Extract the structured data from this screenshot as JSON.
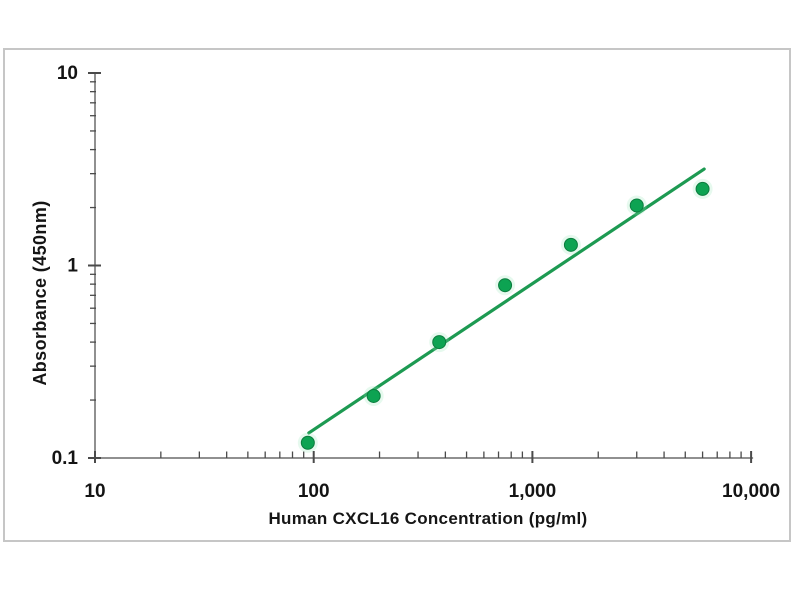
{
  "figure": {
    "background": "#ffffff",
    "border_color": "#c6c6c6"
  },
  "chart_data": {
    "type": "scatter",
    "title": "",
    "xlabel": "Human CXCL16 Concentration (pg/ml)",
    "ylabel": "Absorbance (450nm)",
    "x_scale": "log",
    "y_scale": "log",
    "xlim": [
      10,
      10000
    ],
    "ylim": [
      0.1,
      10
    ],
    "grid": false,
    "legend": false,
    "axis_color": "#909090",
    "tick_color": "#4a4a4a",
    "text_color": "#141414",
    "x_ticks": [
      {
        "value": 10,
        "label": "10"
      },
      {
        "value": 100,
        "label": "100"
      },
      {
        "value": 1000,
        "label": "1,000"
      },
      {
        "value": 10000,
        "label": "10,000"
      }
    ],
    "y_ticks": [
      {
        "value": 10,
        "label": "10"
      },
      {
        "value": 1,
        "label": "1"
      },
      {
        "value": 0.1,
        "label": "0.1"
      }
    ],
    "series": [
      {
        "name": "standard-points",
        "type": "scatter",
        "color": "#0da352",
        "edge_color": "#0b7c3e",
        "halo_color": "#8ce3b1",
        "x": [
          94,
          188,
          375,
          750,
          1500,
          3000,
          6000
        ],
        "y": [
          0.12,
          0.21,
          0.4,
          0.79,
          1.28,
          2.05,
          2.5
        ]
      },
      {
        "name": "fit-line",
        "type": "line",
        "color": "#1d9a52",
        "x": [
          95,
          6100
        ],
        "y": [
          0.135,
          3.17
        ]
      }
    ]
  }
}
